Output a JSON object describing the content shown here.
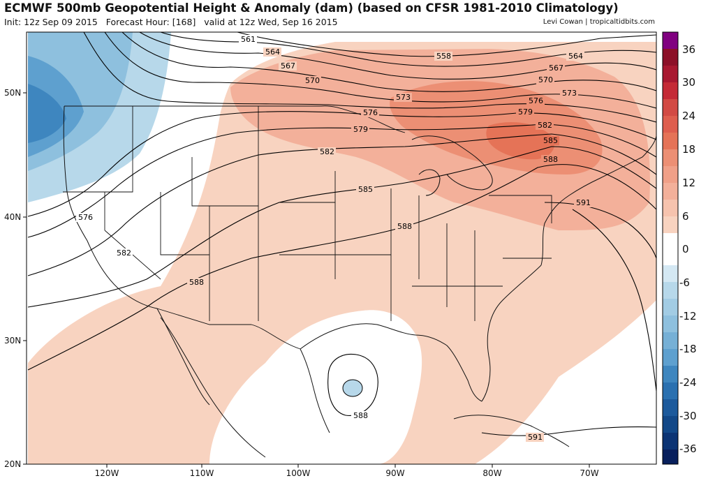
{
  "header": {
    "title": "ECMWF 500mb Geopotential Height & Anomaly (dam) (based on CFSR 1981-2010 Climatology)",
    "init": "Init: 12z Sep 09 2015",
    "forecast_hour": "Forecast Hour: [168]",
    "valid": "valid at 12z Wed, Sep 16 2015",
    "credit": "Levi Cowan | tropicaltidbits.com"
  },
  "axes": {
    "lat_labels": [
      "50N",
      "40N",
      "30N",
      "20N"
    ],
    "lon_labels": [
      "120W",
      "110W",
      "100W",
      "90W",
      "80W",
      "70W"
    ]
  },
  "colorbar": {
    "labels": [
      "36",
      "30",
      "24",
      "18",
      "12",
      "6",
      "0",
      "-6",
      "-12",
      "-18",
      "-24",
      "-30",
      "-36"
    ]
  },
  "contours": {
    "labels": [
      "561",
      "564",
      "567",
      "570",
      "573",
      "576",
      "579",
      "582",
      "585",
      "588",
      "591",
      "558",
      "564",
      "567",
      "570",
      "573",
      "576",
      "579",
      "582",
      "585",
      "588",
      "591",
      "576",
      "582",
      "588",
      "588",
      "591"
    ]
  }
}
